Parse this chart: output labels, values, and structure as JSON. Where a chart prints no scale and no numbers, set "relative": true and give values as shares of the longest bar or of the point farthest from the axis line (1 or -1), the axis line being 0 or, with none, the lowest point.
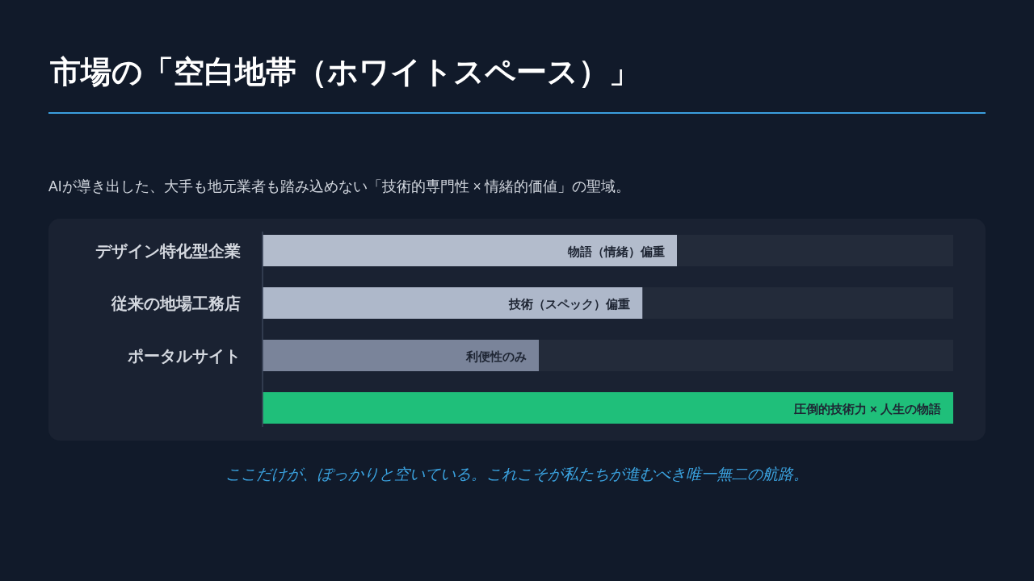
{
  "chart_data": {
    "type": "bar",
    "orientation": "horizontal",
    "relative": true,
    "title": "市場の「空白地帯（ホワイトスペース）」",
    "subtitle": "AIが導き出した、大手も地元業者も踏み込めない「技術的専門性 × 情緒的価値」の聖域。",
    "categories": [
      "デザイン特化型企業",
      "従来の地場工務店",
      "ポータルサイト",
      null
    ],
    "values": [
      0.6,
      0.55,
      0.4,
      1.0
    ],
    "colors": [
      "#b3bccc",
      "#aeb8ca",
      "#7a849a",
      "#1fbf7a"
    ],
    "annotations": [
      {
        "text": "物語（情緒）偏重",
        "x": 0.6,
        "y": "デザイン特化型企業"
      },
      {
        "text": "技術（スペック）偏重",
        "x": 0.55,
        "y": "従来の地場工務店"
      },
      {
        "text": "利便性のみ",
        "x": 0.4,
        "y": "ポータルサイト"
      },
      {
        "text": "圧倒的技術力 × 人生の物語",
        "x": 1.0
      },
      "ここだけが、ぽっかりと空いている。これこそが私たちが進むべき唯一無二の航路。"
    ]
  }
}
